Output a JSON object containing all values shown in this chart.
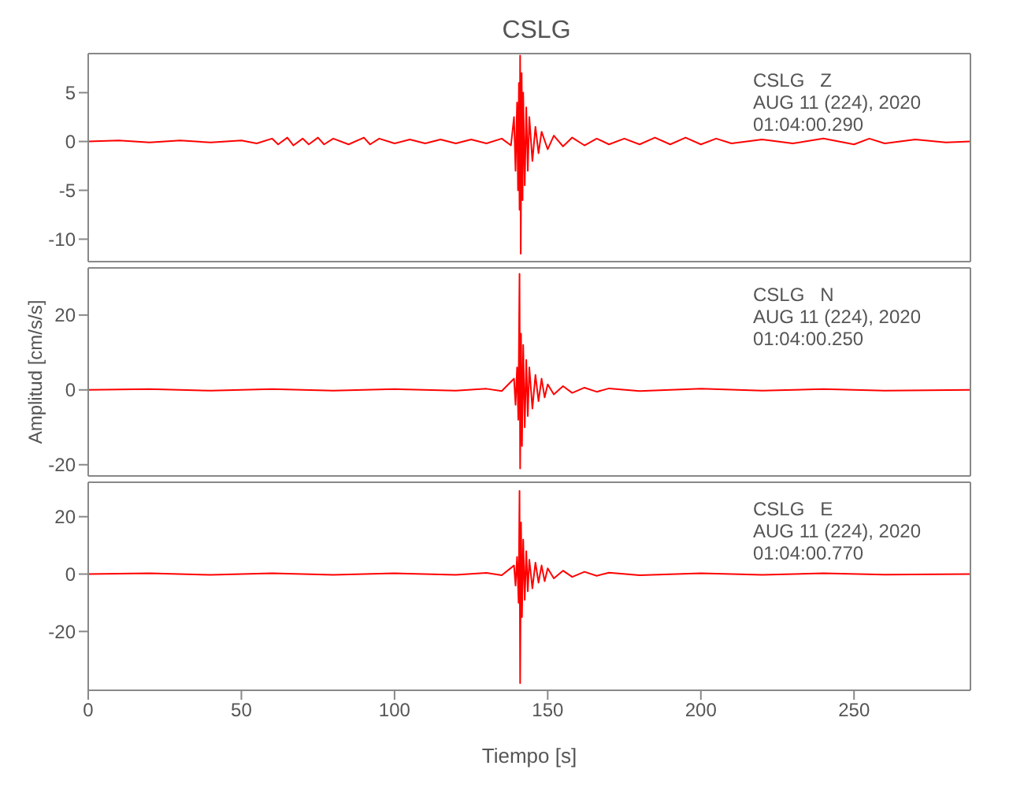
{
  "chart_data": [
    {
      "type": "line",
      "title": "CSLG",
      "annotations": [
        "CSLG   Z",
        "AUG 11 (224), 2020",
        "01:04:00.290"
      ],
      "tick_labels": "y",
      "xlim": [
        0,
        288
      ],
      "xticks": [
        0,
        50,
        100,
        150,
        200,
        250
      ],
      "ylim": [
        -12.3,
        9
      ],
      "yticks": [
        -10,
        -5,
        0,
        5
      ],
      "x": [
        0,
        10,
        20,
        30,
        40,
        50,
        55,
        60,
        62,
        65,
        67,
        70,
        72,
        75,
        77,
        80,
        85,
        90,
        92,
        95,
        100,
        105,
        110,
        115,
        120,
        125,
        130,
        135,
        138,
        139,
        139.5,
        140,
        140.3,
        140.6,
        140.8,
        141,
        141.2,
        141.5,
        141.8,
        142,
        142.5,
        143,
        143.5,
        144,
        145,
        146,
        147,
        148,
        150,
        152,
        155,
        158,
        162,
        166,
        170,
        175,
        180,
        185,
        190,
        195,
        200,
        205,
        210,
        220,
        230,
        240,
        250,
        255,
        260,
        270,
        280,
        288
      ],
      "series": [
        {
          "color": "#ff0000",
          "values": [
            0,
            0.1,
            -0.1,
            0.1,
            -0.1,
            0.1,
            -0.2,
            0.3,
            -0.3,
            0.4,
            -0.4,
            0.3,
            -0.3,
            0.4,
            -0.3,
            0.3,
            -0.3,
            0.4,
            -0.3,
            0.3,
            -0.2,
            0.2,
            -0.2,
            0.2,
            -0.2,
            0.2,
            -0.2,
            0.3,
            -0.4,
            2.5,
            -3,
            4,
            -5,
            6,
            -7,
            8.8,
            -11.5,
            7,
            -6,
            5,
            -4.5,
            3.5,
            -3,
            2.5,
            -2,
            1.5,
            -1.2,
            1,
            -0.8,
            0.6,
            -0.5,
            0.4,
            -0.4,
            0.3,
            -0.3,
            0.3,
            -0.3,
            0.4,
            -0.3,
            0.4,
            -0.3,
            0.3,
            -0.2,
            0.2,
            -0.2,
            0.3,
            -0.3,
            0.3,
            -0.2,
            0.2,
            -0.1,
            0
          ]
        }
      ]
    },
    {
      "type": "line",
      "ylabel": "Amplitud [cm/s/s]",
      "annotations": [
        "CSLG   N",
        "AUG 11 (224), 2020",
        "01:04:00.250"
      ],
      "tick_labels": "y",
      "xlim": [
        0,
        288
      ],
      "xticks": [
        0,
        50,
        100,
        150,
        200,
        250
      ],
      "ylim": [
        -23,
        32.6
      ],
      "yticks": [
        -20,
        0,
        20
      ],
      "x": [
        0,
        20,
        40,
        60,
        80,
        100,
        120,
        130,
        135,
        139,
        139.5,
        140,
        140.4,
        140.8,
        141,
        141.3,
        141.6,
        142,
        142.5,
        143,
        143.5,
        144,
        145,
        146,
        147,
        148,
        149,
        150,
        152,
        155,
        158,
        162,
        166,
        170,
        180,
        200,
        220,
        240,
        260,
        288
      ],
      "series": [
        {
          "color": "#ff0000",
          "values": [
            0,
            0.2,
            -0.2,
            0.2,
            -0.2,
            0.2,
            -0.2,
            0.3,
            -0.3,
            3,
            -4,
            6,
            -8,
            31,
            -21,
            15,
            -15,
            12,
            -10,
            8,
            -7,
            6,
            -5,
            4,
            -3,
            3,
            -2,
            1.5,
            -1.2,
            1,
            -0.8,
            0.6,
            -0.5,
            0.4,
            -0.3,
            0.3,
            -0.2,
            0.2,
            -0.2,
            0
          ]
        }
      ]
    },
    {
      "type": "line",
      "xlabel": "Tiempo [s]",
      "annotations": [
        "CSLG   E",
        "AUG 11 (224), 2020",
        "01:04:00.770"
      ],
      "xlim": [
        0,
        288
      ],
      "xticks": [
        0,
        50,
        100,
        150,
        200,
        250
      ],
      "ylim": [
        -40.5,
        32
      ],
      "yticks": [
        -20,
        0,
        20
      ],
      "x": [
        0,
        20,
        40,
        60,
        80,
        100,
        120,
        130,
        135,
        139,
        139.5,
        140,
        140.5,
        140.8,
        141,
        141.3,
        141.6,
        142,
        142.5,
        143,
        143.5,
        144,
        145,
        146,
        147,
        148,
        149,
        150,
        152,
        155,
        158,
        162,
        166,
        170,
        180,
        200,
        220,
        240,
        260,
        288
      ],
      "series": [
        {
          "color": "#ff0000",
          "values": [
            0,
            0.3,
            -0.3,
            0.3,
            -0.3,
            0.3,
            -0.3,
            0.4,
            -0.4,
            3,
            -4,
            6,
            -10,
            29,
            -38,
            18,
            -15,
            12,
            -9,
            8,
            -6,
            5,
            -5,
            4,
            -3,
            3,
            -2.5,
            2,
            -1.5,
            1.2,
            -1,
            0.8,
            -0.6,
            0.5,
            -0.4,
            0.3,
            -0.3,
            0.3,
            -0.2,
            0
          ]
        }
      ]
    }
  ]
}
